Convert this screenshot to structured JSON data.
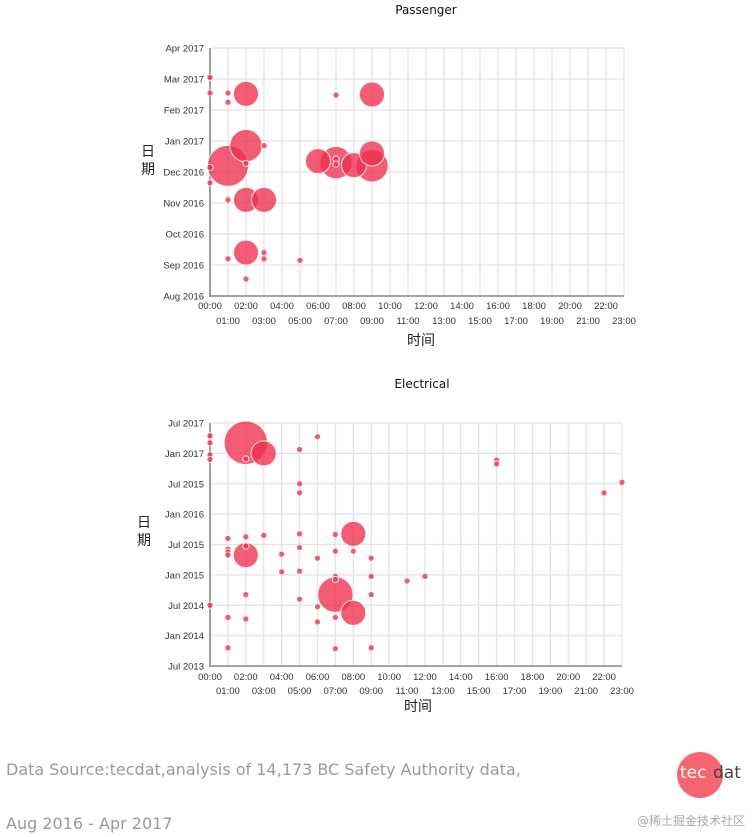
{
  "chart_data": [
    {
      "type": "scatter",
      "subtype": "bubble",
      "title": "Passenger",
      "xlabel": "时间",
      "ylabel": "日期",
      "x_tick_labels_top": [
        "00:00",
        "02:00",
        "04:00",
        "06:00",
        "08:00",
        "10:00",
        "12:00",
        "14:00",
        "16:00",
        "18:00",
        "20:00",
        "22:00"
      ],
      "x_tick_labels_bottom": [
        "01:00",
        "03:00",
        "05:00",
        "07:00",
        "09:00",
        "11:00",
        "13:00",
        "15:00",
        "17:00",
        "19:00",
        "21:00",
        "23:00"
      ],
      "xlim": [
        0,
        23
      ],
      "y_tick_labels": [
        "Apr 2017",
        "Mar 2017",
        "Feb 2017",
        "Jan 2017",
        "Dec 2016",
        "Nov 2016",
        "Oct 2016",
        "Sep 2016",
        "Aug 2016"
      ],
      "ylim_labels": [
        "Aug 2016",
        "Apr 2017"
      ],
      "grid": true,
      "color": "#ee2e4d",
      "points": [
        {
          "hour": 0,
          "date_index": 7.05,
          "size": 1
        },
        {
          "hour": 0,
          "date_index": 6.55,
          "size": 1
        },
        {
          "hour": 1,
          "date_index": 6.55,
          "size": 1
        },
        {
          "hour": 1,
          "date_index": 6.25,
          "size": 1
        },
        {
          "hour": 2,
          "date_index": 6.52,
          "size": 6
        },
        {
          "hour": 7,
          "date_index": 6.48,
          "size": 1
        },
        {
          "hour": 9,
          "date_index": 6.5,
          "size": 6
        },
        {
          "hour": 2,
          "date_index": 4.85,
          "size": 10
        },
        {
          "hour": 3,
          "date_index": 4.85,
          "size": 1
        },
        {
          "hour": 1,
          "date_index": 4.2,
          "size": 16
        },
        {
          "hour": 0,
          "date_index": 4.15,
          "size": 1
        },
        {
          "hour": 2,
          "date_index": 4.28,
          "size": 1
        },
        {
          "hour": 0,
          "date_index": 3.65,
          "size": 1
        },
        {
          "hour": 6,
          "date_index": 4.35,
          "size": 6
        },
        {
          "hour": 7,
          "date_index": 4.3,
          "size": 10
        },
        {
          "hour": 7,
          "date_index": 4.42,
          "size": 1
        },
        {
          "hour": 7,
          "date_index": 4.25,
          "size": 1
        },
        {
          "hour": 8,
          "date_index": 4.22,
          "size": 6
        },
        {
          "hour": 9,
          "date_index": 4.2,
          "size": 10
        },
        {
          "hour": 9,
          "date_index": 4.6,
          "size": 6
        },
        {
          "hour": 1,
          "date_index": 3.1,
          "size": 1
        },
        {
          "hour": 2,
          "date_index": 3.1,
          "size": 6
        },
        {
          "hour": 3,
          "date_index": 3.1,
          "size": 6
        },
        {
          "hour": 1,
          "date_index": 1.2,
          "size": 1
        },
        {
          "hour": 2,
          "date_index": 1.4,
          "size": 6
        },
        {
          "hour": 3,
          "date_index": 1.4,
          "size": 1
        },
        {
          "hour": 3,
          "date_index": 1.2,
          "size": 1
        },
        {
          "hour": 5,
          "date_index": 1.15,
          "size": 1
        },
        {
          "hour": 2,
          "date_index": 0.55,
          "size": 1
        }
      ]
    },
    {
      "type": "scatter",
      "subtype": "bubble",
      "title": "Electrical",
      "xlabel": "时间",
      "ylabel": "日期",
      "x_tick_labels_top": [
        "00:00",
        "02:00",
        "04:00",
        "06:00",
        "08:00",
        "10:00",
        "12:00",
        "14:00",
        "16:00",
        "18:00",
        "20:00",
        "22:00"
      ],
      "x_tick_labels_bottom": [
        "01:00",
        "03:00",
        "05:00",
        "07:00",
        "09:00",
        "11:00",
        "13:00",
        "15:00",
        "17:00",
        "19:00",
        "21:00",
        "23:00"
      ],
      "xlim": [
        0,
        23
      ],
      "y_tick_labels": [
        "Jul 2017",
        "Jan 2017",
        "Jul 2015",
        "Jan 2016",
        "Jul 2015",
        "Jan 2015",
        "Jul 2014",
        "Jan 2014",
        "Jul 2013"
      ],
      "ylim_labels": [
        "Jul 2013",
        "Jul 2017"
      ],
      "grid": true,
      "color": "#ee2e4d",
      "points": [
        {
          "hour": 0,
          "date_index": 7.58,
          "size": 1
        },
        {
          "hour": 0,
          "date_index": 7.35,
          "size": 1
        },
        {
          "hour": 0,
          "date_index": 6.95,
          "size": 1
        },
        {
          "hour": 0,
          "date_index": 6.8,
          "size": 1
        },
        {
          "hour": 2,
          "date_index": 7.35,
          "size": 18
        },
        {
          "hour": 2,
          "date_index": 6.82,
          "size": 1
        },
        {
          "hour": 3,
          "date_index": 7.0,
          "size": 6
        },
        {
          "hour": 5,
          "date_index": 7.13,
          "size": 1
        },
        {
          "hour": 6,
          "date_index": 7.55,
          "size": 1
        },
        {
          "hour": 5,
          "date_index": 6.0,
          "size": 1
        },
        {
          "hour": 5,
          "date_index": 5.7,
          "size": 1
        },
        {
          "hour": 16,
          "date_index": 6.78,
          "size": 1
        },
        {
          "hour": 16,
          "date_index": 6.65,
          "size": 1
        },
        {
          "hour": 22,
          "date_index": 5.7,
          "size": 1
        },
        {
          "hour": 23,
          "date_index": 6.05,
          "size": 1
        },
        {
          "hour": 1,
          "date_index": 4.2,
          "size": 1
        },
        {
          "hour": 1,
          "date_index": 3.85,
          "size": 1
        },
        {
          "hour": 1,
          "date_index": 3.75,
          "size": 1
        },
        {
          "hour": 1,
          "date_index": 3.65,
          "size": 1
        },
        {
          "hour": 2,
          "date_index": 4.25,
          "size": 1
        },
        {
          "hour": 2,
          "date_index": 3.95,
          "size": 1
        },
        {
          "hour": 2,
          "date_index": 3.65,
          "size": 6
        },
        {
          "hour": 3,
          "date_index": 4.3,
          "size": 1
        },
        {
          "hour": 4,
          "date_index": 3.68,
          "size": 1
        },
        {
          "hour": 4,
          "date_index": 3.1,
          "size": 1
        },
        {
          "hour": 5,
          "date_index": 4.35,
          "size": 1
        },
        {
          "hour": 5,
          "date_index": 3.9,
          "size": 1
        },
        {
          "hour": 5,
          "date_index": 3.12,
          "size": 1
        },
        {
          "hour": 6,
          "date_index": 3.55,
          "size": 1
        },
        {
          "hour": 7,
          "date_index": 4.33,
          "size": 1
        },
        {
          "hour": 7,
          "date_index": 3.78,
          "size": 1
        },
        {
          "hour": 7,
          "date_index": 2.95,
          "size": 1
        },
        {
          "hour": 7,
          "date_index": 2.85,
          "size": 1
        },
        {
          "hour": 7,
          "date_index": 2.35,
          "size": 12
        },
        {
          "hour": 8,
          "date_index": 4.35,
          "size": 6
        },
        {
          "hour": 8,
          "date_index": 3.78,
          "size": 1
        },
        {
          "hour": 9,
          "date_index": 3.55,
          "size": 1
        },
        {
          "hour": 9,
          "date_index": 2.95,
          "size": 1
        },
        {
          "hour": 9,
          "date_index": 2.35,
          "size": 1
        },
        {
          "hour": 11,
          "date_index": 2.8,
          "size": 1
        },
        {
          "hour": 12,
          "date_index": 2.95,
          "size": 1
        },
        {
          "hour": 2,
          "date_index": 2.35,
          "size": 1
        },
        {
          "hour": 0,
          "date_index": 2.0,
          "size": 1
        },
        {
          "hour": 5,
          "date_index": 2.2,
          "size": 1
        },
        {
          "hour": 6,
          "date_index": 1.95,
          "size": 1
        },
        {
          "hour": 6,
          "date_index": 1.45,
          "size": 1
        },
        {
          "hour": 7,
          "date_index": 1.6,
          "size": 1
        },
        {
          "hour": 8,
          "date_index": 1.75,
          "size": 6
        },
        {
          "hour": 1,
          "date_index": 1.6,
          "size": 1
        },
        {
          "hour": 2,
          "date_index": 1.55,
          "size": 1
        },
        {
          "hour": 1,
          "date_index": 0.6,
          "size": 1
        },
        {
          "hour": 7,
          "date_index": 0.57,
          "size": 1
        },
        {
          "hour": 9,
          "date_index": 0.6,
          "size": 1
        }
      ]
    }
  ],
  "footer": {
    "source_line": "Data Source:tecdat,analysis of 14,173 BC Safety Authority data,",
    "date_range": "Aug 2016 - Apr 2017",
    "logo_left": "tec",
    "logo_right": "dat",
    "watermark": "@稀土掘金技术社区"
  }
}
